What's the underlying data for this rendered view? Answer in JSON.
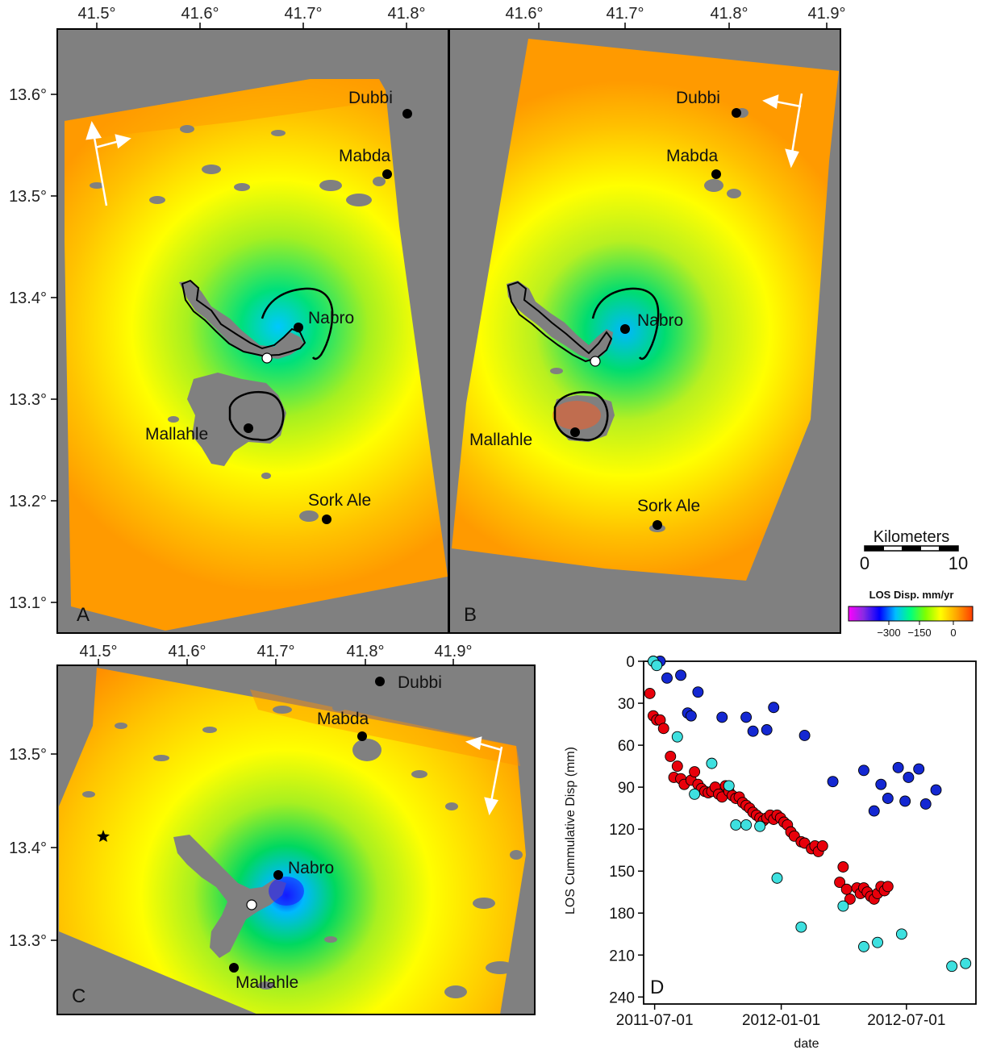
{
  "panels": {
    "A": {
      "letter": "A",
      "lon_ticks": [
        "41.5°",
        "41.6°",
        "41.7°",
        "41.8°"
      ],
      "lat_ticks": [
        "13.6°",
        "13.5°",
        "13.4°",
        "13.3°",
        "13.2°",
        "13.1°"
      ],
      "places": [
        "Dubbi",
        "Mabda",
        "Nabro",
        "Mallahle",
        "Sork Ale"
      ]
    },
    "B": {
      "letter": "B",
      "lon_ticks": [
        "41.6°",
        "41.7°",
        "41.8°",
        "41.9°"
      ],
      "places": [
        "Dubbi",
        "Mabda",
        "Nabro",
        "Mallahle",
        "Sork Ale"
      ]
    },
    "C": {
      "letter": "C",
      "lon_ticks": [
        "41.5°",
        "41.6°",
        "41.7°",
        "41.8°",
        "41.9°"
      ],
      "lat_ticks": [
        "13.5°",
        "13.4°",
        "13.3°"
      ],
      "places": [
        "Dubbi",
        "Mabda",
        "Nabro",
        "Mallahle"
      ]
    }
  },
  "scalebar": {
    "title": "Kilometers",
    "min_label": "0",
    "max_label": "10"
  },
  "colorbar": {
    "title": "LOS Disp. mm/yr",
    "tick_labels": [
      "−300",
      "−150",
      "0"
    ],
    "colors": [
      "#ff00ff",
      "#8a2be2",
      "#0000ff",
      "#00bfff",
      "#00ff7f",
      "#7fff00",
      "#ffff00",
      "#ffa500",
      "#ff3c00"
    ]
  },
  "chart_data": {
    "type": "scatter",
    "panel_letter": "D",
    "xlabel": "date",
    "ylabel": "LOS Cummulative Disp (mm)",
    "x_tick_labels": [
      "2011-07-01",
      "2012-01-01",
      "2012-07-01"
    ],
    "y_tick_labels": [
      "0",
      "30",
      "60",
      "90",
      "120",
      "150",
      "180",
      "210",
      "240"
    ],
    "y_reversed": true,
    "ylim": [
      0,
      245
    ],
    "xlim": [
      "2011-06-15",
      "2012-10-10"
    ],
    "series": [
      {
        "color": "#e8000b",
        "points": [
          [
            "2011-06-24",
            23
          ],
          [
            "2011-06-29",
            39
          ],
          [
            "2011-07-04",
            42
          ],
          [
            "2011-07-09",
            42
          ],
          [
            "2011-07-14",
            48
          ],
          [
            "2011-07-24",
            68
          ],
          [
            "2011-07-29",
            83
          ],
          [
            "2011-08-03",
            75
          ],
          [
            "2011-08-08",
            84
          ],
          [
            "2011-08-13",
            88
          ],
          [
            "2011-08-23",
            85
          ],
          [
            "2011-08-28",
            79
          ],
          [
            "2011-09-02",
            88
          ],
          [
            "2011-09-07",
            91
          ],
          [
            "2011-09-12",
            93
          ],
          [
            "2011-09-17",
            94
          ],
          [
            "2011-09-22",
            93
          ],
          [
            "2011-09-27",
            90
          ],
          [
            "2011-10-02",
            95
          ],
          [
            "2011-10-07",
            97
          ],
          [
            "2011-10-12",
            89
          ],
          [
            "2011-10-17",
            93
          ],
          [
            "2011-10-22",
            96
          ],
          [
            "2011-10-27",
            98
          ],
          [
            "2011-11-01",
            97
          ],
          [
            "2011-11-06",
            101
          ],
          [
            "2011-11-11",
            103
          ],
          [
            "2011-11-16",
            105
          ],
          [
            "2011-11-21",
            108
          ],
          [
            "2011-11-26",
            110
          ],
          [
            "2011-12-01",
            112
          ],
          [
            "2011-12-06",
            114
          ],
          [
            "2011-12-11",
            112
          ],
          [
            "2011-12-16",
            110
          ],
          [
            "2011-12-21",
            113
          ],
          [
            "2011-12-26",
            110
          ],
          [
            "2011-12-31",
            112
          ],
          [
            "2012-01-05",
            115
          ],
          [
            "2012-01-10",
            117
          ],
          [
            "2012-01-15",
            122
          ],
          [
            "2012-01-20",
            125
          ],
          [
            "2012-01-30",
            129
          ],
          [
            "2012-02-04",
            130
          ],
          [
            "2012-02-14",
            134
          ],
          [
            "2012-02-19",
            132
          ],
          [
            "2012-02-24",
            136
          ],
          [
            "2012-03-01",
            132
          ],
          [
            "2012-03-26",
            158
          ],
          [
            "2012-03-31",
            147
          ],
          [
            "2012-04-05",
            163
          ],
          [
            "2012-04-10",
            170
          ],
          [
            "2012-04-20",
            162
          ],
          [
            "2012-04-25",
            166
          ],
          [
            "2012-04-30",
            162
          ],
          [
            "2012-05-05",
            165
          ],
          [
            "2012-05-10",
            168
          ],
          [
            "2012-05-15",
            170
          ],
          [
            "2012-05-20",
            166
          ],
          [
            "2012-05-25",
            161
          ],
          [
            "2012-05-30",
            164
          ],
          [
            "2012-06-04",
            161
          ]
        ]
      },
      {
        "color": "#1428d2",
        "points": [
          [
            "2011-06-29",
            0
          ],
          [
            "2011-07-09",
            0
          ],
          [
            "2011-07-19",
            12
          ],
          [
            "2011-08-08",
            10
          ],
          [
            "2011-08-18",
            37
          ],
          [
            "2011-08-23",
            39
          ],
          [
            "2011-09-02",
            22
          ],
          [
            "2011-10-07",
            40
          ],
          [
            "2011-11-11",
            40
          ],
          [
            "2011-11-21",
            50
          ],
          [
            "2011-12-11",
            49
          ],
          [
            "2011-12-21",
            33
          ],
          [
            "2012-02-04",
            53
          ],
          [
            "2012-03-16",
            86
          ],
          [
            "2012-04-30",
            78
          ],
          [
            "2012-05-15",
            107
          ],
          [
            "2012-05-25",
            88
          ],
          [
            "2012-06-04",
            98
          ],
          [
            "2012-06-19",
            76
          ],
          [
            "2012-06-29",
            100
          ],
          [
            "2012-07-04",
            83
          ],
          [
            "2012-07-19",
            77
          ],
          [
            "2012-07-29",
            102
          ],
          [
            "2012-08-13",
            92
          ]
        ]
      },
      {
        "color": "#3ee0df",
        "points": [
          [
            "2011-06-29",
            0
          ],
          [
            "2011-07-04",
            3
          ],
          [
            "2011-08-03",
            54
          ],
          [
            "2011-08-28",
            95
          ],
          [
            "2011-09-22",
            73
          ],
          [
            "2011-10-17",
            89
          ],
          [
            "2011-10-27",
            117
          ],
          [
            "2011-11-11",
            117
          ],
          [
            "2011-12-01",
            118
          ],
          [
            "2011-12-26",
            155
          ],
          [
            "2012-01-30",
            190
          ],
          [
            "2012-03-31",
            175
          ],
          [
            "2012-04-30",
            204
          ],
          [
            "2012-05-20",
            201
          ],
          [
            "2012-06-24",
            195
          ],
          [
            "2012-09-05",
            218
          ],
          [
            "2012-09-25",
            216
          ]
        ]
      }
    ]
  }
}
